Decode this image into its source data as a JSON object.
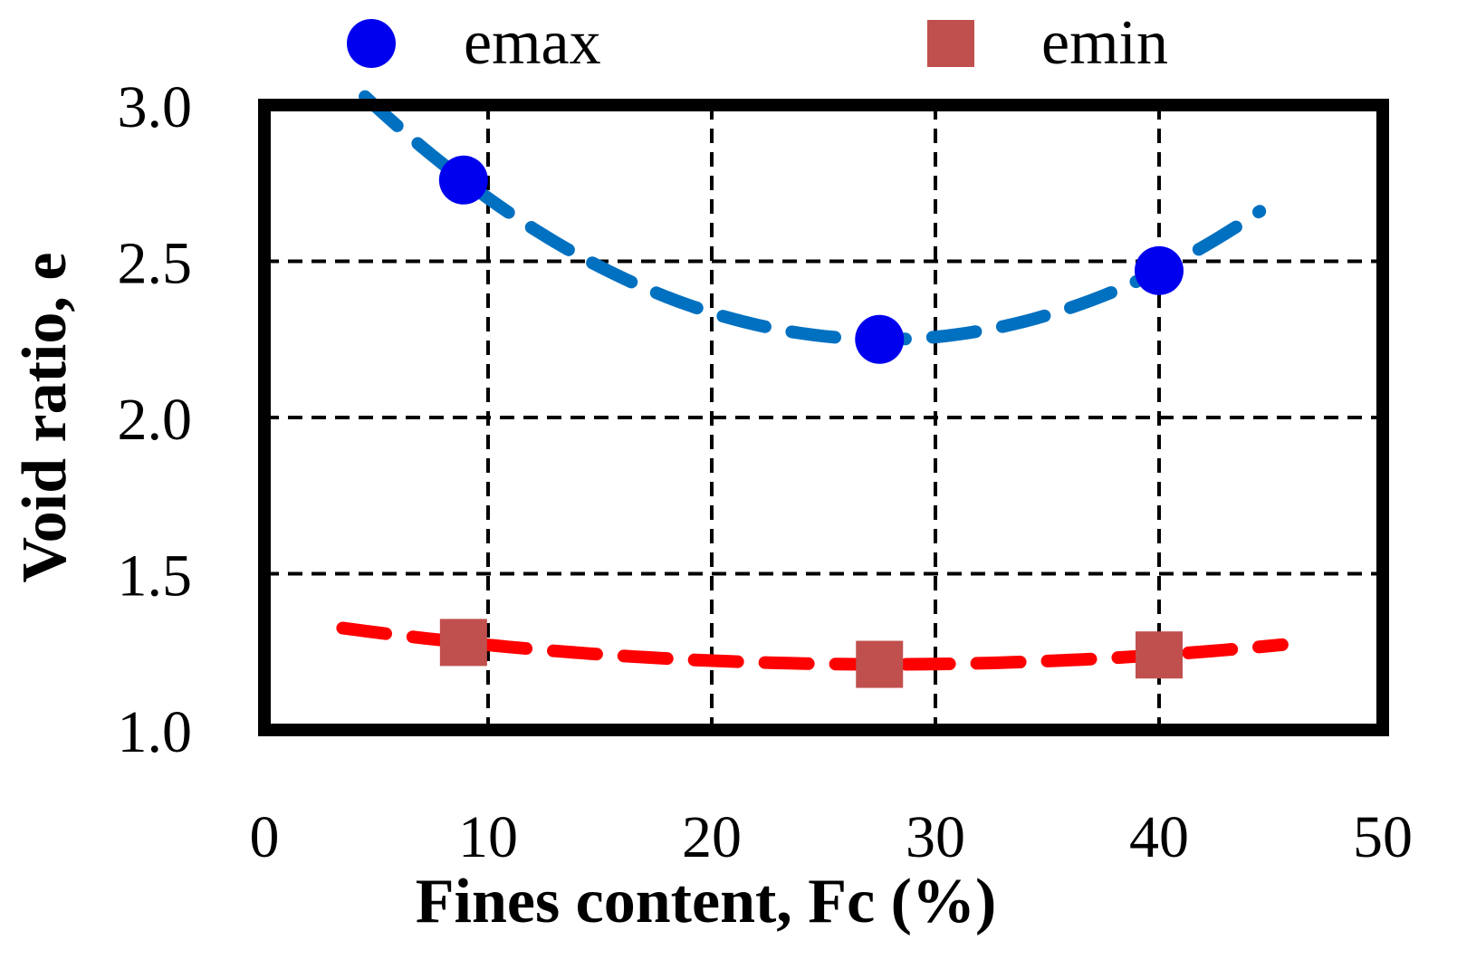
{
  "chart_data": {
    "type": "scatter",
    "title": "",
    "xlabel": "Fines content, Fc (%)",
    "ylabel": "Void ratio, e",
    "xlim": [
      0,
      50
    ],
    "ylim": [
      1.0,
      3.0
    ],
    "grid": true,
    "legend_position": "top",
    "x_ticks": [
      {
        "value": 0,
        "label": "0"
      },
      {
        "value": 10,
        "label": "10"
      },
      {
        "value": 20,
        "label": "20"
      },
      {
        "value": 30,
        "label": "30"
      },
      {
        "value": 40,
        "label": "40"
      },
      {
        "value": 50,
        "label": "50"
      }
    ],
    "y_ticks": [
      {
        "value": 1.0,
        "label": "1.0"
      },
      {
        "value": 1.5,
        "label": "1.5"
      },
      {
        "value": 2.0,
        "label": "2.0"
      },
      {
        "value": 2.5,
        "label": "2.5"
      },
      {
        "value": 3.0,
        "label": "3.0"
      }
    ],
    "series": [
      {
        "name": "emax",
        "marker": "circle",
        "marker_color": "#0000ee",
        "points": [
          {
            "x": 8.9,
            "y": 2.76
          },
          {
            "x": 27.5,
            "y": 2.25
          },
          {
            "x": 40.0,
            "y": 2.47
          }
        ],
        "trend": {
          "style": "dashed",
          "color": "#0070c0",
          "x_range": [
            4.5,
            44.5
          ],
          "points": [
            {
              "x": 8.9,
              "y": 2.76
            },
            {
              "x": 27.5,
              "y": 2.25
            },
            {
              "x": 40.0,
              "y": 2.47
            }
          ]
        }
      },
      {
        "name": "emin",
        "marker": "square",
        "marker_color": "#c0504d",
        "points": [
          {
            "x": 8.9,
            "y": 1.28
          },
          {
            "x": 27.5,
            "y": 1.21
          },
          {
            "x": 40.0,
            "y": 1.24
          }
        ],
        "trend": {
          "style": "dashed",
          "color": "#ff0000",
          "x_range": [
            3.5,
            45.5
          ],
          "points": [
            {
              "x": 8.9,
              "y": 1.28
            },
            {
              "x": 27.5,
              "y": 1.21
            },
            {
              "x": 40.0,
              "y": 1.24
            }
          ]
        }
      }
    ]
  }
}
